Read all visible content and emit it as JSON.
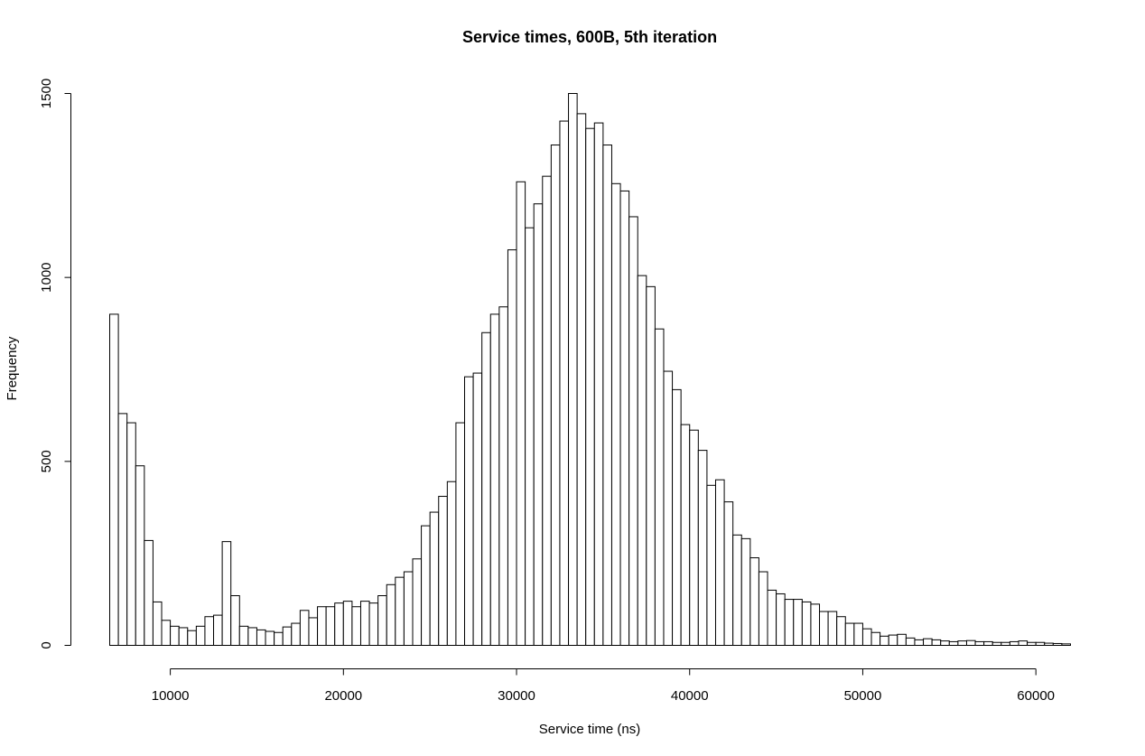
{
  "chart_data": {
    "type": "bar",
    "title": "Service times, 600B, 5th iteration",
    "xlabel": "Service time (ns)",
    "ylabel": "Frequency",
    "xlim": [
      6500,
      62000
    ],
    "ylim": [
      0,
      1500
    ],
    "x_ticks": [
      10000,
      20000,
      30000,
      40000,
      50000,
      60000
    ],
    "x_tick_labels": [
      "10000",
      "20000",
      "30000",
      "40000",
      "50000",
      "60000"
    ],
    "y_ticks": [
      0,
      500,
      1000,
      1500
    ],
    "y_tick_labels": [
      "0",
      "500",
      "1000",
      "1500"
    ],
    "bin_start": 6500,
    "bin_width": 500,
    "values": [
      900,
      630,
      605,
      488,
      285,
      118,
      68,
      52,
      48,
      40,
      52,
      78,
      82,
      282,
      135,
      52,
      48,
      42,
      38,
      35,
      50,
      60,
      95,
      75,
      105,
      105,
      115,
      120,
      105,
      120,
      115,
      135,
      165,
      185,
      200,
      235,
      325,
      362,
      405,
      445,
      605,
      730,
      740,
      850,
      900,
      920,
      1075,
      1260,
      1135,
      1200,
      1275,
      1360,
      1425,
      1500,
      1445,
      1405,
      1420,
      1360,
      1255,
      1235,
      1165,
      1005,
      975,
      860,
      745,
      695,
      600,
      585,
      530,
      435,
      450,
      390,
      300,
      290,
      238,
      200,
      150,
      140,
      125,
      125,
      118,
      112,
      92,
      92,
      78,
      60,
      60,
      45,
      35,
      25,
      28,
      30,
      20,
      15,
      18,
      15,
      12,
      10,
      12,
      13,
      10,
      10,
      8,
      8,
      10,
      12,
      8,
      8,
      6,
      5,
      4
    ],
    "grid": false,
    "legend": "none"
  }
}
